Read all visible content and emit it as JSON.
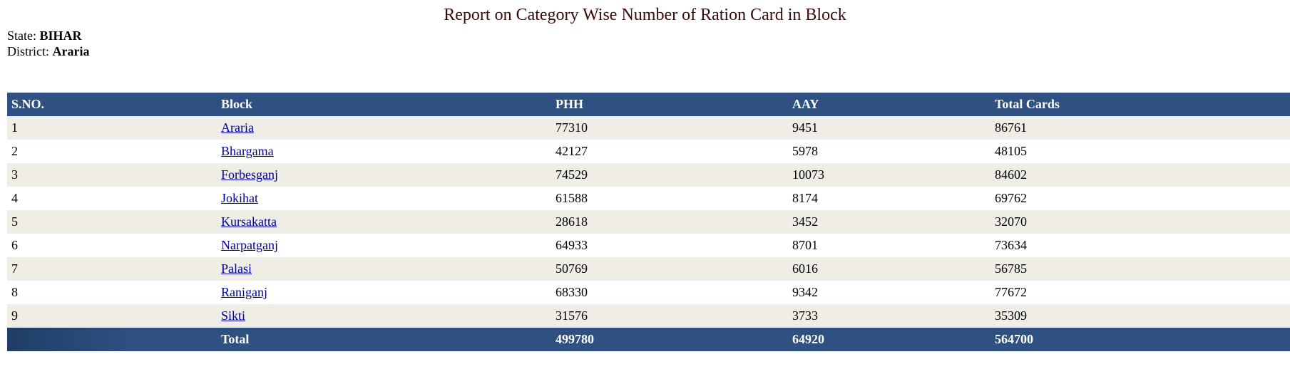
{
  "title": "Report on Category Wise Number of Ration Card in Block",
  "state": {
    "label": "State:",
    "value": "BIHAR"
  },
  "district": {
    "label": "District:",
    "value": "Araria"
  },
  "table": {
    "headers": {
      "sno": "S.NO.",
      "block": "Block",
      "phh": "PHH",
      "aay": "AAY",
      "total": "Total Cards"
    },
    "rows": [
      {
        "sno": "1",
        "block": "Araria",
        "phh": "77310",
        "aay": "9451",
        "total": "86761"
      },
      {
        "sno": "2",
        "block": "Bhargama",
        "phh": "42127",
        "aay": "5978",
        "total": "48105"
      },
      {
        "sno": "3",
        "block": "Forbesganj",
        "phh": "74529",
        "aay": "10073",
        "total": "84602"
      },
      {
        "sno": "4",
        "block": "Jokihat",
        "phh": "61588",
        "aay": "8174",
        "total": "69762"
      },
      {
        "sno": "5",
        "block": "Kursakatta",
        "phh": "28618",
        "aay": "3452",
        "total": "32070"
      },
      {
        "sno": "6",
        "block": "Narpatganj",
        "phh": "64933",
        "aay": "8701",
        "total": "73634"
      },
      {
        "sno": "7",
        "block": "Palasi",
        "phh": "50769",
        "aay": "6016",
        "total": "56785"
      },
      {
        "sno": "8",
        "block": "Raniganj",
        "phh": "68330",
        "aay": "9342",
        "total": "77672"
      },
      {
        "sno": "9",
        "block": "Sikti",
        "phh": "31576",
        "aay": "3733",
        "total": "35309"
      }
    ],
    "footer": {
      "label": "Total",
      "phh": "499780",
      "aay": "64920",
      "total": "564700"
    }
  }
}
